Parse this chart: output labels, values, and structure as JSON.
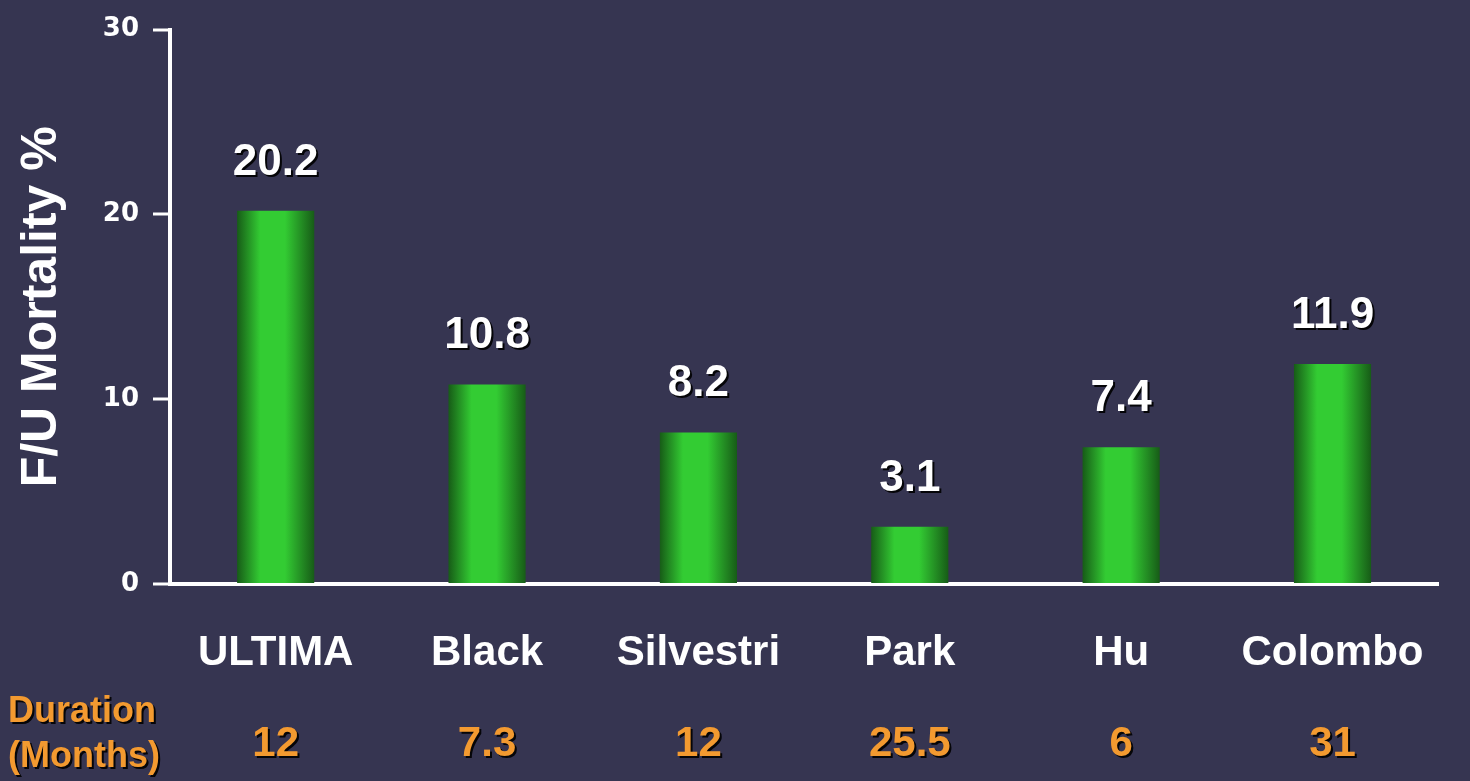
{
  "chart_data": {
    "type": "bar",
    "ylabel": "F/U Mortality %",
    "categories": [
      "ULTIMA",
      "Black",
      "Silvestri",
      "Park",
      "Hu",
      "Colombo"
    ],
    "values": [
      20.2,
      10.8,
      8.2,
      3.1,
      7.4,
      11.9
    ],
    "color": "#33cc33",
    "ylim": [
      0,
      30
    ],
    "yticks": [
      0,
      10,
      20,
      30
    ],
    "grid": false,
    "data_labels": true,
    "annotations": [
      "Duration (Months)",
      "12",
      "7.3",
      "12",
      "25.5",
      "6",
      "31"
    ]
  }
}
